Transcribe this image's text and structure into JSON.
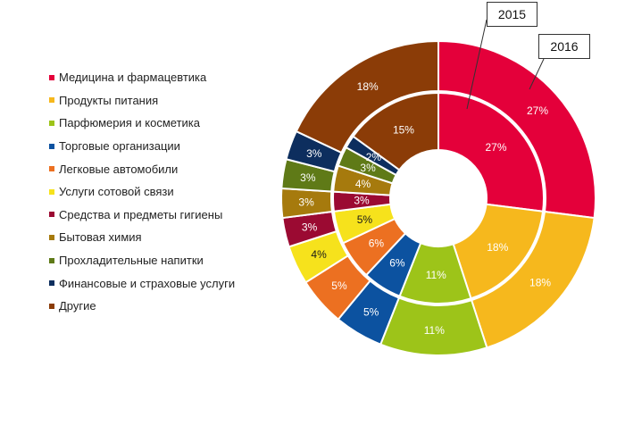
{
  "chart_data": {
    "type": "pie",
    "subtype": "nested-donut",
    "categories": [
      "Медицина и фармацевтика",
      "Продукты питания",
      "Парфюмерия и косметика",
      "Торговые организации",
      "Легковые автомобили",
      "Услуги сотовой связи",
      "Средства и предметы гигиены",
      "Бытовая химия",
      "Прохладительные напитки",
      "Финансовые и страховые услуги",
      "Другие"
    ],
    "colors": [
      "#e4003a",
      "#f6b81d",
      "#9dc419",
      "#0c52a0",
      "#ec7021",
      "#f6e21c",
      "#9b0a32",
      "#a67a0d",
      "#5f7a17",
      "#0d2e5e",
      "#8b3c07"
    ],
    "series": [
      {
        "name": "2015",
        "ring": "inner",
        "values": [
          27,
          18,
          11,
          6,
          6,
          5,
          3,
          4,
          3,
          2,
          15
        ],
        "labels": [
          "27%",
          "18%",
          "11%",
          "6%",
          "6%",
          "5%",
          "3%",
          "4%",
          "3%",
          "2%",
          "15%"
        ]
      },
      {
        "name": "2016",
        "ring": "outer",
        "values": [
          27,
          18,
          11,
          5,
          5,
          4,
          3,
          3,
          3,
          3,
          18
        ],
        "labels": [
          "27%",
          "18%",
          "11%",
          "5%",
          "5%",
          "4%",
          "3%",
          "3%",
          "3%",
          "3%",
          "18%"
        ]
      }
    ],
    "legend_position": "left"
  }
}
